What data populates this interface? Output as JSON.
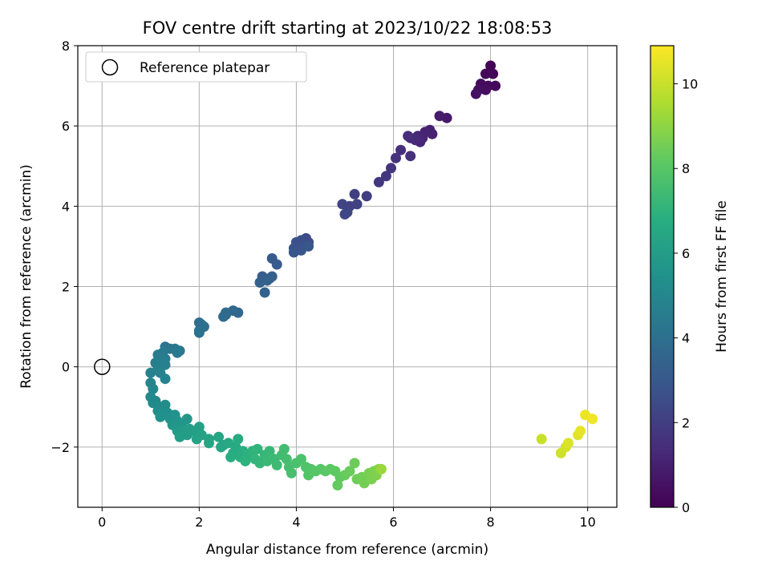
{
  "chart_data": {
    "type": "scatter",
    "title": "FOV centre drift starting at 2023/10/22 18:08:53",
    "xlabel": "Angular distance from reference (arcmin)",
    "ylabel": "Rotation from reference (arcmin)",
    "colorbar_label": "Hours from first FF file",
    "xlim": [
      -0.5,
      10.6
    ],
    "ylim": [
      -3.5,
      8
    ],
    "clim": [
      0,
      10.9
    ],
    "x_ticks": [
      "0",
      "2",
      "4",
      "6",
      "8",
      "10"
    ],
    "y_ticks": [
      "−2",
      "0",
      "2",
      "4",
      "6",
      "8"
    ],
    "colorbar_ticks": [
      "0",
      "2",
      "4",
      "6",
      "8",
      "10"
    ],
    "grid": true,
    "colormap": "viridis",
    "legend": {
      "location": "upper left",
      "entries": [
        "Reference platepar"
      ]
    },
    "reference_point": {
      "x": 0,
      "y": 0
    },
    "points": [
      [
        8.0,
        7.5,
        0.1
      ],
      [
        8.05,
        7.3,
        0.15
      ],
      [
        7.9,
        7.3,
        0.2
      ],
      [
        8.1,
        7.0,
        0.25
      ],
      [
        7.95,
        7.0,
        0.3
      ],
      [
        7.8,
        7.05,
        0.35
      ],
      [
        7.9,
        6.9,
        0.4
      ],
      [
        7.75,
        6.9,
        0.45
      ],
      [
        7.7,
        6.8,
        0.5
      ],
      [
        7.1,
        6.2,
        0.8
      ],
      [
        6.95,
        6.25,
        0.85
      ],
      [
        6.75,
        5.9,
        1.0
      ],
      [
        6.8,
        5.8,
        1.05
      ],
      [
        6.65,
        5.85,
        1.1
      ],
      [
        6.6,
        5.7,
        1.15
      ],
      [
        6.5,
        5.75,
        1.2
      ],
      [
        6.55,
        5.6,
        1.25
      ],
      [
        6.45,
        5.65,
        1.3
      ],
      [
        6.35,
        5.7,
        1.35
      ],
      [
        6.3,
        5.75,
        1.4
      ],
      [
        6.15,
        5.4,
        1.5
      ],
      [
        6.35,
        5.25,
        1.55
      ],
      [
        6.05,
        5.2,
        1.6
      ],
      [
        5.95,
        4.95,
        1.7
      ],
      [
        5.85,
        4.75,
        1.75
      ],
      [
        5.7,
        4.6,
        1.8
      ],
      [
        5.45,
        4.25,
        2.0
      ],
      [
        5.2,
        4.3,
        2.05
      ],
      [
        5.25,
        4.05,
        2.1
      ],
      [
        5.1,
        4.0,
        2.15
      ],
      [
        4.95,
        4.05,
        2.2
      ],
      [
        5.05,
        3.85,
        2.25
      ],
      [
        5.0,
        3.8,
        2.3
      ],
      [
        4.2,
        3.2,
        2.5
      ],
      [
        4.25,
        3.1,
        2.55
      ],
      [
        4.1,
        3.15,
        2.6
      ],
      [
        4.15,
        3.0,
        2.65
      ],
      [
        4.0,
        3.1,
        2.7
      ],
      [
        4.05,
        2.95,
        2.75
      ],
      [
        3.95,
        2.95,
        2.8
      ],
      [
        4.1,
        2.9,
        2.85
      ],
      [
        3.95,
        2.85,
        2.9
      ],
      [
        4.25,
        3.0,
        2.95
      ],
      [
        3.5,
        2.7,
        3.05
      ],
      [
        3.6,
        2.55,
        3.1
      ],
      [
        3.3,
        2.25,
        3.2
      ],
      [
        3.45,
        2.2,
        3.25
      ],
      [
        3.5,
        2.25,
        3.3
      ],
      [
        3.25,
        2.1,
        3.35
      ],
      [
        3.4,
        2.15,
        3.4
      ],
      [
        3.35,
        1.85,
        3.45
      ],
      [
        2.8,
        1.35,
        3.6
      ],
      [
        2.7,
        1.4,
        3.65
      ],
      [
        2.55,
        1.3,
        3.7
      ],
      [
        2.5,
        1.25,
        3.75
      ],
      [
        2.55,
        1.35,
        3.8
      ],
      [
        2.05,
        1.05,
        3.9
      ],
      [
        2.0,
        1.1,
        3.95
      ],
      [
        2.1,
        1.0,
        4.0
      ],
      [
        2.0,
        0.9,
        4.05
      ],
      [
        2.0,
        0.85,
        4.1
      ],
      [
        1.3,
        0.5,
        4.2
      ],
      [
        1.4,
        0.45,
        4.25
      ],
      [
        1.5,
        0.45,
        4.3
      ],
      [
        1.6,
        0.4,
        4.35
      ],
      [
        1.55,
        0.35,
        4.4
      ],
      [
        1.25,
        0.35,
        4.45
      ],
      [
        1.15,
        0.3,
        4.5
      ],
      [
        1.3,
        0.2,
        4.55
      ],
      [
        1.2,
        0.15,
        4.6
      ],
      [
        1.1,
        0.1,
        4.65
      ],
      [
        1.3,
        0.05,
        4.7
      ],
      [
        1.15,
        -0.05,
        4.75
      ],
      [
        1.0,
        -0.15,
        4.8
      ],
      [
        1.2,
        -0.15,
        4.85
      ],
      [
        1.3,
        -0.3,
        4.9
      ],
      [
        1.0,
        -0.4,
        4.95
      ],
      [
        1.05,
        -0.55,
        5.0
      ],
      [
        1.0,
        -0.75,
        5.05
      ],
      [
        1.1,
        -0.85,
        5.1
      ],
      [
        1.05,
        -0.9,
        5.15
      ],
      [
        1.2,
        -1.0,
        5.2
      ],
      [
        1.3,
        -0.95,
        5.25
      ],
      [
        1.15,
        -1.1,
        5.3
      ],
      [
        1.25,
        -1.2,
        5.35
      ],
      [
        1.35,
        -1.15,
        5.4
      ],
      [
        1.2,
        -1.25,
        5.45
      ],
      [
        1.4,
        -1.3,
        5.5
      ],
      [
        1.5,
        -1.2,
        5.55
      ],
      [
        1.55,
        -1.35,
        5.6
      ],
      [
        1.45,
        -1.45,
        5.65
      ],
      [
        1.6,
        -1.4,
        5.7
      ],
      [
        1.75,
        -1.3,
        5.75
      ],
      [
        1.65,
        -1.5,
        5.8
      ],
      [
        1.55,
        -1.6,
        5.85
      ],
      [
        1.7,
        -1.6,
        5.9
      ],
      [
        1.8,
        -1.55,
        5.95
      ],
      [
        1.75,
        -1.7,
        6.0
      ],
      [
        1.6,
        -1.75,
        6.05
      ],
      [
        1.9,
        -1.6,
        6.1
      ],
      [
        2.0,
        -1.5,
        6.15
      ],
      [
        2.05,
        -1.7,
        6.2
      ],
      [
        1.95,
        -1.8,
        6.25
      ],
      [
        2.2,
        -1.8,
        6.3
      ],
      [
        2.2,
        -1.9,
        6.35
      ],
      [
        2.4,
        -1.75,
        6.4
      ],
      [
        2.5,
        -1.95,
        6.45
      ],
      [
        2.45,
        -2.0,
        6.5
      ],
      [
        2.6,
        -1.9,
        6.55
      ],
      [
        2.75,
        -2.0,
        6.6
      ],
      [
        2.8,
        -1.8,
        6.65
      ],
      [
        2.7,
        -2.15,
        6.7
      ],
      [
        2.65,
        -2.25,
        6.75
      ],
      [
        2.9,
        -2.1,
        6.8
      ],
      [
        2.85,
        -2.25,
        6.85
      ],
      [
        3.0,
        -2.2,
        6.9
      ],
      [
        2.95,
        -2.35,
        6.95
      ],
      [
        3.1,
        -2.1,
        7.0
      ],
      [
        3.2,
        -2.05,
        7.05
      ],
      [
        3.15,
        -2.3,
        7.1
      ],
      [
        3.25,
        -2.4,
        7.15
      ],
      [
        3.35,
        -2.2,
        7.2
      ],
      [
        3.45,
        -2.1,
        7.25
      ],
      [
        3.4,
        -2.35,
        7.3
      ],
      [
        3.55,
        -2.3,
        7.35
      ],
      [
        3.6,
        -2.45,
        7.4
      ],
      [
        3.7,
        -2.2,
        7.45
      ],
      [
        3.75,
        -2.05,
        7.5
      ],
      [
        3.8,
        -2.3,
        7.55
      ],
      [
        3.85,
        -2.5,
        7.6
      ],
      [
        3.9,
        -2.65,
        7.65
      ],
      [
        4.0,
        -2.4,
        7.7
      ],
      [
        4.1,
        -2.3,
        7.75
      ],
      [
        4.2,
        -2.5,
        7.8
      ],
      [
        4.3,
        -2.55,
        7.85
      ],
      [
        4.25,
        -2.7,
        7.9
      ],
      [
        4.4,
        -2.6,
        7.95
      ],
      [
        4.5,
        -2.55,
        8.0
      ],
      [
        4.6,
        -2.6,
        8.05
      ],
      [
        4.7,
        -2.55,
        8.1
      ],
      [
        4.8,
        -2.6,
        8.15
      ],
      [
        4.9,
        -2.75,
        8.2
      ],
      [
        4.85,
        -2.95,
        8.25
      ],
      [
        5.0,
        -2.7,
        8.3
      ],
      [
        5.1,
        -2.6,
        8.35
      ],
      [
        5.2,
        -2.4,
        8.4
      ],
      [
        5.25,
        -2.8,
        8.45
      ],
      [
        5.35,
        -2.75,
        8.5
      ],
      [
        5.4,
        -2.9,
        8.55
      ],
      [
        5.5,
        -2.65,
        8.6
      ],
      [
        5.55,
        -2.8,
        8.65
      ],
      [
        5.6,
        -2.6,
        8.7
      ],
      [
        5.65,
        -2.7,
        8.75
      ],
      [
        5.7,
        -2.55,
        8.8
      ],
      [
        5.75,
        -2.55,
        9.2
      ],
      [
        9.05,
        -1.8,
        10.0
      ],
      [
        9.45,
        -2.15,
        10.1
      ],
      [
        9.55,
        -2.0,
        10.2
      ],
      [
        9.6,
        -1.9,
        10.3
      ],
      [
        9.8,
        -1.7,
        10.4
      ],
      [
        9.85,
        -1.6,
        10.5
      ],
      [
        9.95,
        -1.2,
        10.6
      ],
      [
        10.1,
        -1.3,
        10.7
      ]
    ]
  }
}
